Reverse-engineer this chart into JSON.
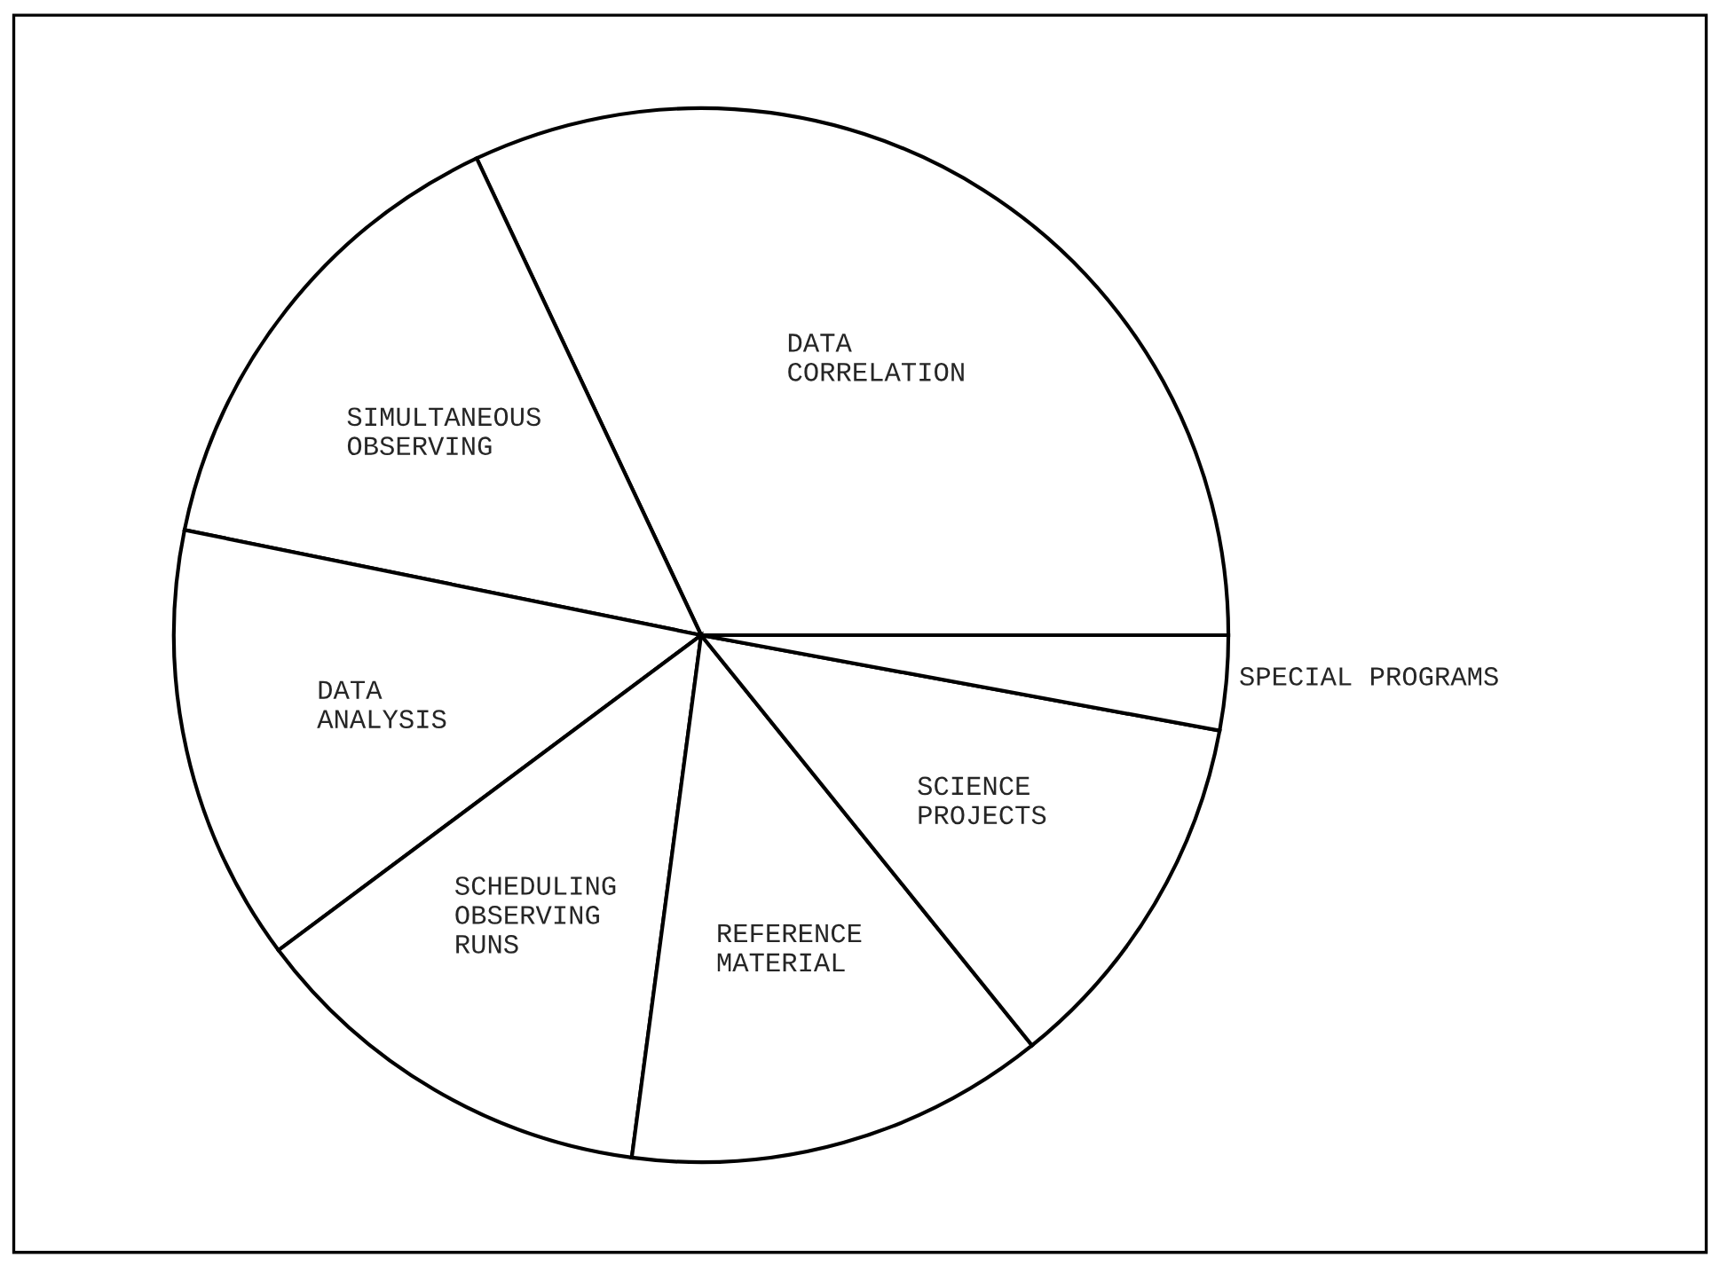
{
  "chart_data": {
    "type": "pie",
    "categories": [
      "DATA\nCORRELATION",
      "SIMULTANEOUS\nOBSERVING",
      "DATA\nANALYSIS",
      "SCHEDULING\nOBSERVING\nRUNS",
      "REFERENCE\nMATERIAL",
      "SCIENCE\nPROJECTS",
      "SPECIAL PROGRAMS"
    ],
    "values": [
      32.0,
      14.8,
      13.4,
      12.7,
      12.9,
      11.3,
      2.9
    ],
    "colors": [
      "#ffffff",
      "#ffffff",
      "#ffffff",
      "#ffffff",
      "#ffffff",
      "#ffffff",
      "#ffffff"
    ]
  }
}
